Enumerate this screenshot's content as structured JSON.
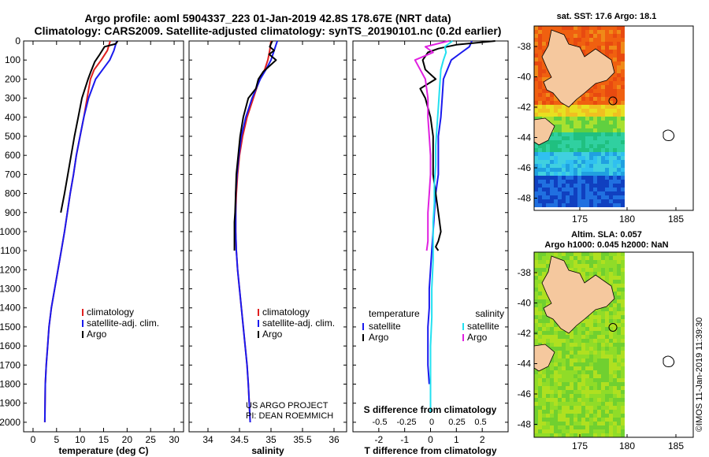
{
  "header": {
    "title_line1": "Argo profile: aoml 5904337_223 01-Jan-2019 42.8S 178.67E (NRT data)",
    "title_line2": "Climatology: CARS2009. Satellite-adjusted climatology: synTS_20190101.nc (0.2d earlier)"
  },
  "colors": {
    "climatology": "#e02020",
    "satellite": "#1a1aee",
    "argo": "#000000",
    "sat_salinity": "#22e0f0",
    "argo_salinity": "#e020e0"
  },
  "chart_data": [
    {
      "type": "line",
      "panel": "temperature",
      "xlabel": "temperature (deg C)",
      "ylabel": "",
      "xlim": [
        -2,
        32
      ],
      "ylim": [
        2050,
        0
      ],
      "xticks": [
        0,
        5,
        10,
        15,
        20,
        25,
        30
      ],
      "yticks": [
        0,
        100,
        200,
        300,
        400,
        500,
        600,
        700,
        800,
        900,
        1000,
        1100,
        1200,
        1300,
        1400,
        1500,
        1600,
        1700,
        1800,
        1900,
        2000
      ],
      "legend": [
        "climatology",
        "satellite-adj. clim.",
        "Argo"
      ],
      "series": [
        {
          "name": "climatology",
          "color": "#e02020",
          "x": [
            16.4,
            15.8,
            14.5,
            13.0,
            12.2,
            11.5,
            10.8,
            10.0,
            9.2,
            8.6,
            7.9,
            7.3,
            6.7,
            6.0,
            5.3,
            4.6,
            3.9,
            3.4,
            3.1,
            2.8,
            2.6,
            2.5
          ],
          "y": [
            0,
            50,
            100,
            150,
            200,
            300,
            400,
            500,
            600,
            700,
            800,
            900,
            1000,
            1100,
            1200,
            1300,
            1400,
            1500,
            1600,
            1700,
            1800,
            2000
          ]
        },
        {
          "name": "satellite-adj. clim.",
          "color": "#1a1aee",
          "x": [
            17.8,
            17.2,
            16.3,
            14.8,
            13.3,
            11.8,
            10.8,
            10.0,
            9.2,
            8.6,
            7.9,
            7.3,
            6.7,
            6.0,
            5.3,
            4.6,
            3.9,
            3.4,
            3.1,
            2.8,
            2.6,
            2.5
          ],
          "y": [
            0,
            50,
            100,
            150,
            200,
            300,
            400,
            500,
            600,
            700,
            800,
            900,
            1000,
            1100,
            1200,
            1300,
            1400,
            1500,
            1600,
            1700,
            1800,
            2000
          ]
        },
        {
          "name": "Argo",
          "color": "#000000",
          "x": [
            18.0,
            17.6,
            15.2,
            14.2,
            13.1,
            12.3,
            11.7,
            10.4,
            9.6,
            8.8,
            8.1,
            7.4,
            6.7,
            5.9
          ],
          "y": [
            0,
            15,
            30,
            70,
            110,
            160,
            200,
            300,
            400,
            500,
            600,
            700,
            800,
            900
          ]
        }
      ]
    },
    {
      "type": "line",
      "panel": "salinity",
      "xlabel": "salinity",
      "ylabel": "",
      "xlim": [
        33.7,
        36.2
      ],
      "ylim": [
        2050,
        0
      ],
      "xticks": [
        34,
        34.5,
        35,
        35.5,
        36
      ],
      "legend": [
        "climatology",
        "satellite-adj. clim.",
        "Argo"
      ],
      "annotations": [
        "US ARGO PROJECT",
        "PI: DEAN ROEMMICH"
      ],
      "series": [
        {
          "name": "climatology",
          "color": "#e02020",
          "x": [
            35.0,
            34.98,
            34.95,
            34.9,
            34.82,
            34.72,
            34.62,
            34.55,
            34.5,
            34.47,
            34.45,
            34.44,
            34.44,
            34.45,
            34.47,
            34.5,
            34.53,
            34.56,
            34.59,
            34.62,
            34.64,
            34.67
          ],
          "y": [
            0,
            50,
            100,
            150,
            200,
            300,
            400,
            500,
            600,
            700,
            800,
            900,
            1000,
            1100,
            1200,
            1300,
            1400,
            1500,
            1600,
            1700,
            1800,
            2000
          ]
        },
        {
          "name": "satellite-adj. clim.",
          "color": "#1a1aee",
          "x": [
            35.1,
            35.05,
            35.0,
            34.92,
            34.83,
            34.7,
            34.6,
            34.53,
            34.49,
            34.46,
            34.44,
            34.44,
            34.44,
            34.45,
            34.47,
            34.5,
            34.53,
            34.56,
            34.59,
            34.62,
            34.64,
            34.67
          ],
          "y": [
            0,
            50,
            100,
            150,
            200,
            300,
            400,
            500,
            600,
            700,
            800,
            900,
            1000,
            1100,
            1200,
            1300,
            1400,
            1500,
            1600,
            1700,
            1800,
            2000
          ]
        },
        {
          "name": "Argo",
          "color": "#000000",
          "x": [
            35.02,
            34.98,
            35.05,
            34.97,
            35.08,
            34.98,
            34.88,
            34.8,
            34.76,
            34.64,
            34.56,
            34.51,
            34.48,
            34.45,
            34.44,
            34.43,
            34.42,
            34.42,
            34.42,
            34.42
          ],
          "y": [
            0,
            30,
            50,
            70,
            100,
            130,
            160,
            200,
            250,
            300,
            400,
            500,
            600,
            700,
            800,
            900,
            950,
            1000,
            1050,
            1100
          ]
        }
      ]
    },
    {
      "type": "line",
      "panel": "difference",
      "xlabel": "T difference from climatology",
      "secondary_xlabel": "S difference from climatology",
      "xlim": [
        -3,
        3
      ],
      "ylim": [
        2050,
        0
      ],
      "xticks": [
        -2,
        -1,
        0,
        1,
        2
      ],
      "secondary_xticks": [
        "-0.5",
        "-0.25",
        "0",
        "0.25",
        "0.5"
      ],
      "legend_left_title": "temperature",
      "legend_left": [
        "satellite",
        "Argo"
      ],
      "legend_right_title": "salinity",
      "legend_right": [
        "satellite",
        "Argo"
      ],
      "series": [
        {
          "name": "satellite",
          "color": "#1a1aee",
          "x": [
            1.6,
            1.5,
            1.2,
            0.8,
            0.5,
            0.45,
            0.4,
            0.3,
            0.3,
            0.3,
            0.2,
            0.15,
            0.1,
            0.05,
            0.0,
            -0.05,
            -0.05,
            -0.1,
            -0.1,
            -0.1,
            -0.05
          ],
          "y": [
            0,
            30,
            60,
            100,
            200,
            300,
            400,
            500,
            600,
            700,
            800,
            900,
            1000,
            1100,
            1200,
            1300,
            1400,
            1500,
            1600,
            1700,
            1800
          ]
        },
        {
          "name": "Argo",
          "color": "#000000",
          "x": [
            2.5,
            1.0,
            0.3,
            -0.1,
            -0.2,
            -0.3,
            -0.2,
            0.2,
            -0.4,
            -0.2,
            0.0,
            0.1,
            0.1,
            0.1,
            0.2,
            0.3,
            0.4,
            0.3,
            0.2,
            0.3
          ],
          "y": [
            0,
            20,
            40,
            60,
            80,
            100,
            150,
            200,
            250,
            300,
            400,
            500,
            600,
            700,
            800,
            900,
            1000,
            1050,
            1080,
            1100
          ]
        },
        {
          "name": "salinity satellite",
          "color": "#22e0f0",
          "x": [
            0.85,
            0.55,
            0.6,
            0.5,
            0.4,
            0.35,
            0.3,
            0.25,
            0.2,
            0.2,
            0.15,
            0.15,
            0.1,
            0.1,
            0.1,
            0.05,
            0.05,
            0.0,
            0.0,
            0.0,
            0.0
          ],
          "y": [
            0,
            30,
            60,
            100,
            150,
            250,
            350,
            450,
            550,
            650,
            750,
            850,
            950,
            1050,
            1150,
            1300,
            1450,
            1600,
            1750,
            1850,
            1950
          ]
        },
        {
          "name": "salinity Argo",
          "color": "#e020e0",
          "x": [
            0.7,
            -0.2,
            0.1,
            -0.6,
            -0.4,
            -0.2,
            -0.1,
            -0.1,
            -0.05,
            0.0,
            0.0,
            -0.05,
            -0.1,
            -0.1,
            -0.1,
            -0.15
          ],
          "y": [
            0,
            30,
            60,
            100,
            150,
            200,
            300,
            400,
            500,
            600,
            700,
            800,
            900,
            1000,
            1050,
            1100
          ]
        }
      ]
    }
  ],
  "maps": {
    "top_title": "sat. SST: 17.6 Argo: 18.1",
    "bottom_title_line1": "Altim. SLA: 0.057",
    "bottom_title_line2": "Argo h1000: 0.045 h2000: NaN",
    "lat_ticks": [
      "-38",
      "-40",
      "-42",
      "-44",
      "-46",
      "-48"
    ],
    "lon_ticks": [
      "175",
      "180",
      "185"
    ]
  },
  "footer": {
    "timestamp": "©IMOS 11-Jan-2019 11:39:30"
  }
}
